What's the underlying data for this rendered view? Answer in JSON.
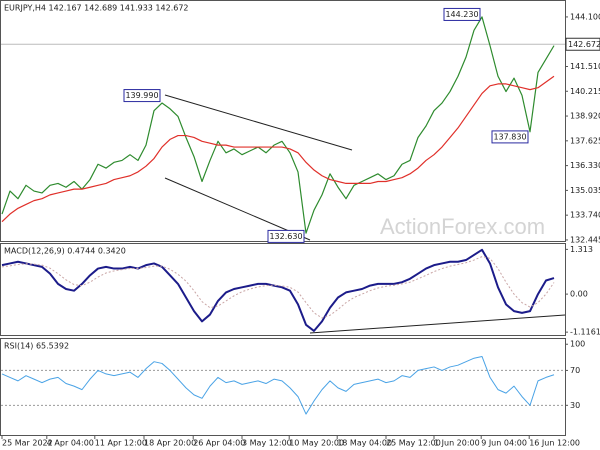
{
  "chart_data": [
    {
      "type": "line",
      "title": "EURJPY,H4 142.167 142.689 141.933 142.672",
      "watermark": "ActionForex.com",
      "ylim": [
        132.39,
        144.88
      ],
      "yticks": [
        {
          "value": 144.1,
          "label": "144.100"
        },
        {
          "value": 141.51,
          "label": "141.510"
        },
        {
          "value": 140.215,
          "label": "140.215"
        },
        {
          "value": 138.92,
          "label": "138.920"
        },
        {
          "value": 137.625,
          "label": "137.625"
        },
        {
          "value": 136.33,
          "label": "136.330"
        },
        {
          "value": 135.035,
          "label": "135.035"
        },
        {
          "value": 133.74,
          "label": "133.740"
        },
        {
          "value": 132.445,
          "label": "132.445"
        }
      ],
      "last_price": {
        "value": 142.672,
        "label": "142.672"
      },
      "annotations": [
        {
          "x": 20,
          "value": 139.99,
          "label": "139.990"
        },
        {
          "x": 60,
          "value": 144.23,
          "label": "144.230"
        },
        {
          "x": 66,
          "value": 137.83,
          "label": "137.830"
        },
        {
          "x": 38,
          "value": 132.63,
          "label": "132.630"
        }
      ],
      "series": [
        {
          "color": "#2e8b2e",
          "width": 1.2,
          "values": [
            133.8,
            135.0,
            134.6,
            135.3,
            135.0,
            134.9,
            135.3,
            135.4,
            135.2,
            135.5,
            135.1,
            135.6,
            136.4,
            136.2,
            136.5,
            136.6,
            136.9,
            136.6,
            137.4,
            139.2,
            139.6,
            139.3,
            138.9,
            137.8,
            136.8,
            135.5,
            136.6,
            137.6,
            137.0,
            137.2,
            136.9,
            137.1,
            137.3,
            137.0,
            137.4,
            137.6,
            137.0,
            136.0,
            132.8,
            134.0,
            134.8,
            135.9,
            135.2,
            134.6,
            135.3,
            135.5,
            135.7,
            135.9,
            135.6,
            135.8,
            136.4,
            136.6,
            137.8,
            138.4,
            139.2,
            139.6,
            140.2,
            141.0,
            142.0,
            143.4,
            144.1,
            142.6,
            141.0,
            140.2,
            140.9,
            140.0,
            138.1,
            141.2,
            141.9,
            142.6
          ]
        },
        {
          "color": "#e0302a",
          "width": 1.2,
          "values": [
            133.4,
            133.8,
            134.1,
            134.3,
            134.5,
            134.6,
            134.8,
            134.9,
            135.0,
            135.1,
            135.1,
            135.2,
            135.3,
            135.4,
            135.6,
            135.7,
            135.8,
            136.0,
            136.3,
            136.7,
            137.3,
            137.7,
            137.9,
            137.9,
            137.8,
            137.6,
            137.5,
            137.4,
            137.4,
            137.3,
            137.3,
            137.3,
            137.3,
            137.3,
            137.3,
            137.3,
            137.2,
            137.0,
            136.5,
            136.1,
            135.8,
            135.6,
            135.5,
            135.4,
            135.4,
            135.4,
            135.4,
            135.5,
            135.5,
            135.6,
            135.7,
            135.9,
            136.2,
            136.6,
            136.9,
            137.3,
            137.8,
            138.3,
            138.9,
            139.5,
            140.1,
            140.5,
            140.6,
            140.6,
            140.5,
            140.4,
            140.3,
            140.4,
            140.7,
            141.0
          ]
        }
      ]
    },
    {
      "type": "line",
      "title": "MACD(12,26,9) 0.4744 0.3420",
      "ylim": [
        -1.2,
        1.5
      ],
      "yticks": [
        1.313,
        {
          "value": 0,
          "label": "0.00"
        },
        -1.1161
      ],
      "series": [
        {
          "color": "#1c1c8a",
          "width": 2,
          "values": [
            0.85,
            0.9,
            0.95,
            0.9,
            0.85,
            0.8,
            0.6,
            0.3,
            0.15,
            0.1,
            0.3,
            0.55,
            0.75,
            0.8,
            0.75,
            0.75,
            0.8,
            0.75,
            0.85,
            0.9,
            0.8,
            0.55,
            0.3,
            -0.1,
            -0.5,
            -0.8,
            -0.6,
            -0.2,
            0.05,
            0.15,
            0.2,
            0.25,
            0.3,
            0.3,
            0.25,
            0.2,
            0.1,
            -0.3,
            -0.9,
            -1.08,
            -0.8,
            -0.4,
            -0.1,
            0.05,
            0.1,
            0.15,
            0.25,
            0.3,
            0.3,
            0.3,
            0.35,
            0.45,
            0.6,
            0.75,
            0.85,
            0.9,
            0.95,
            0.95,
            1.0,
            1.15,
            1.3,
            0.9,
            0.2,
            -0.3,
            -0.5,
            -0.55,
            -0.5,
            0.0,
            0.4,
            0.47
          ]
        },
        {
          "color": "#c9a5a5",
          "width": 1,
          "style": "dotted",
          "values": [
            0.8,
            0.83,
            0.87,
            0.89,
            0.88,
            0.85,
            0.76,
            0.6,
            0.42,
            0.28,
            0.25,
            0.35,
            0.5,
            0.62,
            0.68,
            0.72,
            0.75,
            0.75,
            0.78,
            0.82,
            0.82,
            0.73,
            0.58,
            0.38,
            0.1,
            -0.22,
            -0.4,
            -0.35,
            -0.2,
            -0.05,
            0.07,
            0.15,
            0.21,
            0.25,
            0.26,
            0.24,
            0.2,
            0.06,
            -0.25,
            -0.55,
            -0.7,
            -0.62,
            -0.45,
            -0.25,
            -0.1,
            0.0,
            0.1,
            0.18,
            0.23,
            0.26,
            0.3,
            0.35,
            0.45,
            0.55,
            0.66,
            0.75,
            0.82,
            0.87,
            0.92,
            1.0,
            1.1,
            1.05,
            0.75,
            0.35,
            0.0,
            -0.25,
            -0.38,
            -0.25,
            0.0,
            0.34
          ]
        }
      ]
    },
    {
      "type": "line",
      "title": "RSI(14) 65.5392",
      "ylim": [
        -4,
        106
      ],
      "yticks": [
        100,
        70,
        30
      ],
      "levels": [
        70,
        30
      ],
      "series": [
        {
          "color": "#4aa3e6",
          "width": 1,
          "values": [
            66,
            62,
            58,
            64,
            60,
            56,
            60,
            62,
            55,
            52,
            48,
            60,
            70,
            66,
            64,
            66,
            68,
            62,
            72,
            80,
            78,
            70,
            60,
            50,
            42,
            38,
            52,
            62,
            56,
            58,
            54,
            56,
            58,
            55,
            60,
            58,
            50,
            40,
            20,
            35,
            48,
            58,
            50,
            46,
            54,
            56,
            58,
            60,
            56,
            58,
            64,
            62,
            70,
            72,
            74,
            70,
            74,
            76,
            80,
            84,
            86,
            62,
            48,
            44,
            52,
            40,
            30,
            58,
            62,
            65
          ]
        }
      ],
      "xticks": [
        {
          "value": 0,
          "label": "25 Mar 2022"
        },
        {
          "value": 5.6,
          "label": "4 Apr 04:00"
        },
        {
          "value": 11.6,
          "label": "11 Apr 12:00"
        },
        {
          "value": 17.75,
          "label": "18 Apr 20:00"
        },
        {
          "value": 23.9,
          "label": "26 Apr 04:00"
        },
        {
          "value": 30,
          "label": "3 May 12:00"
        },
        {
          "value": 35.9,
          "label": "10 May 20:00"
        },
        {
          "value": 41.9,
          "label": "18 May 04:00"
        },
        {
          "value": 48,
          "label": "25 May 12:00"
        },
        {
          "value": 54,
          "label": "1 Jun 20:00"
        },
        {
          "value": 59.9,
          "label": "9 Jun 04:00"
        },
        {
          "value": 65.9,
          "label": "16 Jun 12:00"
        }
      ]
    }
  ]
}
